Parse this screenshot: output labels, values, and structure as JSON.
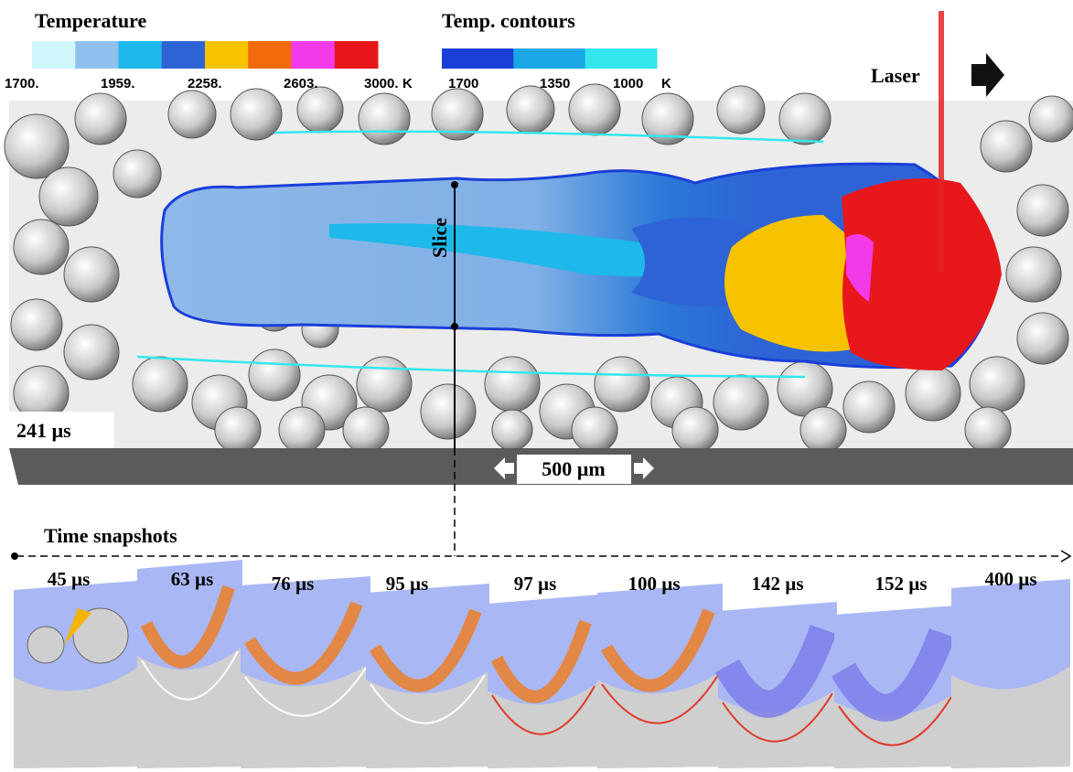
{
  "legend_temperature": {
    "title": "Temperature",
    "labels": [
      "1700.",
      "1959.",
      "2258.",
      "2603.",
      "3000."
    ],
    "unit": "K",
    "colors": [
      "#cff6fb",
      "#8fc0ee",
      "#1fb8ea",
      "#2e63d6",
      "#f7c300",
      "#f26a0c",
      "#f23ae8",
      "#e8171b"
    ]
  },
  "legend_contours": {
    "title": "Temp. contours",
    "labels": [
      "1700",
      "1350",
      "1000"
    ],
    "unit": "K",
    "colors": [
      "#1a3fd8",
      "#19a7e6",
      "#33e6ee"
    ]
  },
  "main_view": {
    "laser_label": "Laser",
    "slice_label": "Slice",
    "time_label": "241 µs",
    "scale_label": "500 µm"
  },
  "snapshots": {
    "title": "Time snapshots",
    "labels": [
      "45 µs",
      "63 µs",
      "76 µs",
      "95 µs",
      "97 µs",
      "100 µs",
      "142 µs",
      "152 µs",
      "400 µs"
    ]
  }
}
